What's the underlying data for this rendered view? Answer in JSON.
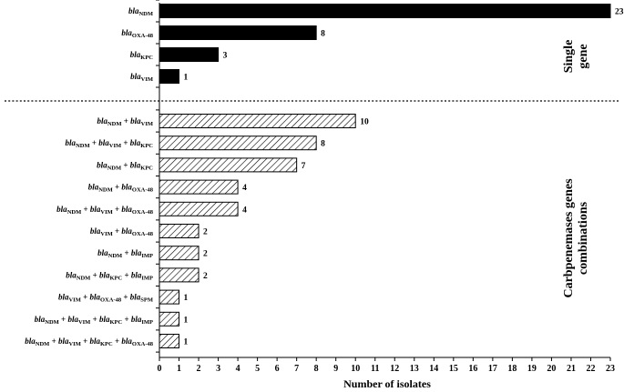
{
  "chart_data": {
    "type": "bar",
    "orientation": "horizontal",
    "xlabel": "Number of isolates",
    "xlim": [
      0,
      23
    ],
    "xticks": [
      0,
      1,
      2,
      3,
      4,
      5,
      6,
      7,
      8,
      9,
      10,
      11,
      12,
      13,
      14,
      15,
      16,
      17,
      18,
      19,
      20,
      21,
      22,
      23
    ],
    "grid": false,
    "groups": [
      {
        "label_lines": [
          "Single",
          "gene"
        ],
        "pattern": "solid",
        "items": [
          {
            "genes": [
              {
                "pre": "bla",
                "sub": "NDM"
              }
            ],
            "value": 23
          },
          {
            "genes": [
              {
                "pre": "bla",
                "sub": "OXA-48"
              }
            ],
            "value": 8
          },
          {
            "genes": [
              {
                "pre": "bla",
                "sub": "KPC"
              }
            ],
            "value": 3
          },
          {
            "genes": [
              {
                "pre": "bla",
                "sub": "VIM"
              }
            ],
            "value": 1
          }
        ]
      },
      {
        "label_lines": [
          "Carbpenemases genes",
          "combinations"
        ],
        "pattern": "hatched",
        "items": [
          {
            "genes": [
              {
                "pre": "bla",
                "sub": "NDM"
              },
              {
                "pre": "bla",
                "sub": "VIM"
              }
            ],
            "value": 10
          },
          {
            "genes": [
              {
                "pre": "bla",
                "sub": "NDM"
              },
              {
                "pre": "bla",
                "sub": "VIM"
              },
              {
                "pre": "bla",
                "sub": "KPC"
              }
            ],
            "value": 8
          },
          {
            "genes": [
              {
                "pre": "bla",
                "sub": "NDM"
              },
              {
                "pre": "bla",
                "sub": "KPC"
              }
            ],
            "value": 7
          },
          {
            "genes": [
              {
                "pre": "bla",
                "sub": "NDM"
              },
              {
                "pre": "bla",
                "sub": "OXA-48"
              }
            ],
            "value": 4
          },
          {
            "genes": [
              {
                "pre": "bla",
                "sub": "NDM"
              },
              {
                "pre": "bla",
                "sub": "VIM"
              },
              {
                "pre": "bla",
                "sub": "OXA-48"
              }
            ],
            "value": 4
          },
          {
            "genes": [
              {
                "pre": "bla",
                "sub": "VIM"
              },
              {
                "pre": "bla",
                "sub": "OXA-48"
              }
            ],
            "value": 2
          },
          {
            "genes": [
              {
                "pre": "bla",
                "sub": "NDM"
              },
              {
                "pre": "bla",
                "sub": "IMP"
              }
            ],
            "value": 2
          },
          {
            "genes": [
              {
                "pre": "bla",
                "sub": "NDM"
              },
              {
                "pre": "bla",
                "sub": "KPC"
              },
              {
                "pre": "bla",
                "sub": "IMP"
              }
            ],
            "value": 2
          },
          {
            "genes": [
              {
                "pre": "bla",
                "sub": "VIM"
              },
              {
                "pre": "bla",
                "sub": "OXA-48"
              },
              {
                "pre": "bla",
                "sub": "SPM"
              }
            ],
            "value": 1
          },
          {
            "genes": [
              {
                "pre": "bla",
                "sub": "NDM"
              },
              {
                "pre": "bla",
                "sub": "VIM"
              },
              {
                "pre": "bla",
                "sub": "KPC"
              },
              {
                "pre": "bla",
                "sub": "IMP"
              }
            ],
            "value": 1
          },
          {
            "genes": [
              {
                "pre": "bla",
                "sub": "NDM"
              },
              {
                "pre": "bla",
                "sub": "VIM"
              },
              {
                "pre": "bla",
                "sub": "KPC"
              },
              {
                "pre": "bla",
                "sub": "OXA-48"
              }
            ],
            "value": 1
          }
        ]
      }
    ],
    "joiner": "+",
    "colors": {
      "bar": "#000000",
      "hatch_fill": "#ffffff",
      "ink": "#000000"
    }
  }
}
